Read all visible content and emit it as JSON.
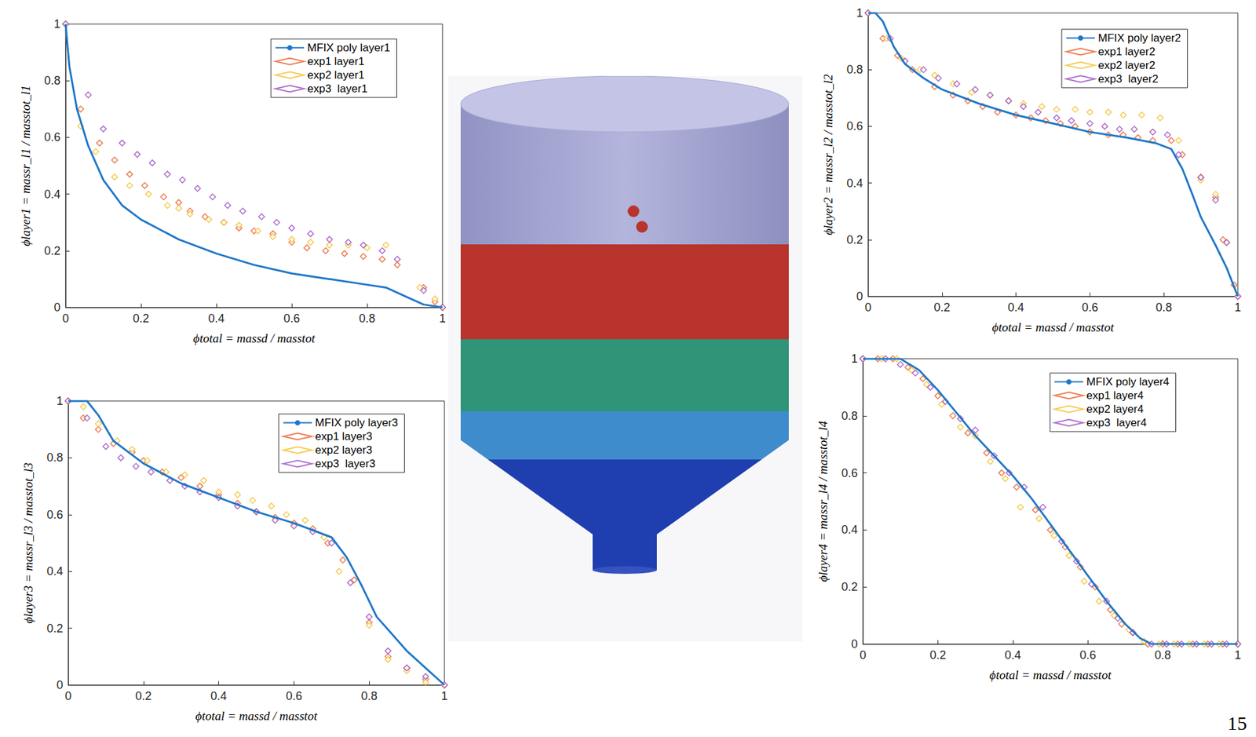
{
  "page_number": "15",
  "chart_data": [
    {
      "type": "line",
      "xlabel": "ϕtotal = massd / masstot",
      "ylabel": "ϕlayer1 = massr_l1 / masstot_l1",
      "xlim": [
        0,
        1
      ],
      "xticks": [
        0,
        0.2,
        0.4,
        0.6,
        0.8,
        1
      ],
      "ylim": [
        0,
        1
      ],
      "yticks": [
        0,
        0.2,
        0.4,
        0.6,
        0.8,
        1
      ],
      "grid": false,
      "legend": "upper right",
      "series": [
        {
          "name": "MFIX poly layer1",
          "type": "line",
          "marker": "none",
          "line_style": "solid",
          "color": "#1f77c8",
          "x": [
            0,
            0.01,
            0.03,
            0.06,
            0.1,
            0.15,
            0.2,
            0.3,
            0.4,
            0.5,
            0.6,
            0.7,
            0.8,
            0.85,
            0.9,
            0.95,
            1
          ],
          "values": [
            1,
            0.85,
            0.7,
            0.57,
            0.45,
            0.36,
            0.31,
            0.24,
            0.19,
            0.15,
            0.12,
            0.1,
            0.08,
            0.07,
            0.04,
            0.01,
            0
          ]
        },
        {
          "name": "exp1 layer1",
          "type": "scatter",
          "marker": "diamond",
          "color": "#e8602c",
          "x": [
            0,
            0.04,
            0.09,
            0.13,
            0.17,
            0.21,
            0.26,
            0.3,
            0.33,
            0.37,
            0.42,
            0.46,
            0.5,
            0.55,
            0.6,
            0.64,
            0.69,
            0.74,
            0.79,
            0.84,
            0.88,
            0.95,
            0.98,
            1
          ],
          "values": [
            1,
            0.7,
            0.58,
            0.52,
            0.47,
            0.43,
            0.39,
            0.37,
            0.34,
            0.32,
            0.3,
            0.28,
            0.27,
            0.26,
            0.23,
            0.21,
            0.2,
            0.19,
            0.18,
            0.17,
            0.15,
            0.07,
            0.02,
            0
          ]
        },
        {
          "name": "exp2 layer1",
          "type": "scatter",
          "marker": "diamond",
          "color": "#f2c12e",
          "x": [
            0,
            0.04,
            0.08,
            0.13,
            0.17,
            0.22,
            0.27,
            0.3,
            0.33,
            0.38,
            0.42,
            0.46,
            0.51,
            0.55,
            0.6,
            0.65,
            0.7,
            0.75,
            0.8,
            0.85,
            0.94,
            0.98,
            1
          ],
          "values": [
            1,
            0.64,
            0.55,
            0.46,
            0.43,
            0.4,
            0.36,
            0.35,
            0.33,
            0.31,
            0.3,
            0.29,
            0.27,
            0.25,
            0.24,
            0.23,
            0.22,
            0.22,
            0.21,
            0.22,
            0.07,
            0.03,
            0
          ]
        },
        {
          "name": "exp3  layer1",
          "type": "scatter",
          "marker": "diamond",
          "color": "#9e4fc1",
          "x": [
            0,
            0.06,
            0.1,
            0.15,
            0.19,
            0.23,
            0.27,
            0.31,
            0.35,
            0.39,
            0.43,
            0.47,
            0.52,
            0.56,
            0.6,
            0.65,
            0.7,
            0.75,
            0.79,
            0.84,
            0.88,
            0.95,
            1
          ],
          "values": [
            1,
            0.75,
            0.63,
            0.58,
            0.54,
            0.51,
            0.47,
            0.45,
            0.42,
            0.39,
            0.36,
            0.34,
            0.32,
            0.3,
            0.28,
            0.26,
            0.24,
            0.23,
            0.22,
            0.2,
            0.17,
            0.06,
            0
          ]
        }
      ]
    },
    {
      "type": "line",
      "xlabel": "ϕtotal = massd / masstot",
      "ylabel": "ϕlayer2 = massr_l2 / masstot_l2",
      "xlim": [
        0,
        1
      ],
      "xticks": [
        0,
        0.2,
        0.4,
        0.6,
        0.8,
        1
      ],
      "ylim": [
        0,
        1
      ],
      "yticks": [
        0,
        0.2,
        0.4,
        0.6,
        0.8,
        1
      ],
      "grid": false,
      "legend": "upper right",
      "series": [
        {
          "name": "MFIX poly layer2",
          "type": "line",
          "marker": "none",
          "line_style": "solid",
          "color": "#1f77c8",
          "x": [
            0,
            0.02,
            0.04,
            0.07,
            0.1,
            0.15,
            0.2,
            0.3,
            0.4,
            0.5,
            0.6,
            0.7,
            0.78,
            0.82,
            0.85,
            0.88,
            0.9,
            0.94,
            0.97,
            1
          ],
          "values": [
            1,
            1,
            0.97,
            0.88,
            0.82,
            0.77,
            0.73,
            0.68,
            0.64,
            0.61,
            0.58,
            0.56,
            0.54,
            0.52,
            0.45,
            0.35,
            0.28,
            0.18,
            0.1,
            0
          ]
        },
        {
          "name": "exp1 layer2",
          "type": "scatter",
          "marker": "diamond",
          "color": "#e8602c",
          "x": [
            0,
            0.04,
            0.08,
            0.12,
            0.18,
            0.23,
            0.27,
            0.31,
            0.35,
            0.4,
            0.44,
            0.48,
            0.52,
            0.56,
            0.6,
            0.65,
            0.69,
            0.73,
            0.77,
            0.82,
            0.85,
            0.9,
            0.94,
            0.96,
            0.99,
            1
          ],
          "values": [
            1,
            0.91,
            0.85,
            0.8,
            0.74,
            0.71,
            0.69,
            0.67,
            0.65,
            0.64,
            0.63,
            0.62,
            0.61,
            0.6,
            0.58,
            0.57,
            0.57,
            0.56,
            0.55,
            0.55,
            0.5,
            0.42,
            0.35,
            0.2,
            0.04,
            0
          ]
        },
        {
          "name": "exp2 layer2",
          "type": "scatter",
          "marker": "diamond",
          "color": "#f2c12e",
          "x": [
            0,
            0.05,
            0.09,
            0.14,
            0.18,
            0.23,
            0.28,
            0.33,
            0.38,
            0.42,
            0.47,
            0.51,
            0.56,
            0.6,
            0.65,
            0.69,
            0.74,
            0.79,
            0.84,
            0.9,
            0.94,
            0.97,
            1
          ],
          "values": [
            1,
            0.91,
            0.84,
            0.8,
            0.78,
            0.75,
            0.72,
            0.71,
            0.69,
            0.68,
            0.67,
            0.66,
            0.66,
            0.65,
            0.65,
            0.64,
            0.64,
            0.63,
            0.55,
            0.41,
            0.36,
            0.19,
            0
          ]
        },
        {
          "name": "exp3  layer2",
          "type": "scatter",
          "marker": "diamond",
          "color": "#9e4fc1",
          "x": [
            0,
            0.06,
            0.1,
            0.15,
            0.19,
            0.24,
            0.29,
            0.33,
            0.38,
            0.42,
            0.46,
            0.51,
            0.55,
            0.6,
            0.64,
            0.68,
            0.72,
            0.77,
            0.81,
            0.84,
            0.9,
            0.94,
            0.97,
            1
          ],
          "values": [
            1,
            0.91,
            0.83,
            0.8,
            0.77,
            0.75,
            0.73,
            0.71,
            0.69,
            0.67,
            0.65,
            0.63,
            0.62,
            0.61,
            0.6,
            0.59,
            0.59,
            0.58,
            0.57,
            0.5,
            0.42,
            0.34,
            0.19,
            0
          ]
        }
      ]
    },
    {
      "type": "line",
      "xlabel": "ϕtotal = massd / masstot",
      "ylabel": "ϕlayer3 = massr_l3 / masstot_l3",
      "xlim": [
        0,
        1
      ],
      "xticks": [
        0,
        0.2,
        0.4,
        0.6,
        0.8,
        1
      ],
      "ylim": [
        0,
        1
      ],
      "yticks": [
        0,
        0.2,
        0.4,
        0.6,
        0.8,
        1
      ],
      "grid": false,
      "legend": "upper right",
      "series": [
        {
          "name": "MFIX poly layer3",
          "type": "line",
          "marker": "none",
          "line_style": "solid",
          "color": "#1f77c8",
          "x": [
            0,
            0.05,
            0.08,
            0.12,
            0.2,
            0.3,
            0.4,
            0.5,
            0.6,
            0.66,
            0.7,
            0.74,
            0.78,
            0.82,
            0.86,
            0.9,
            0.95,
            1
          ],
          "values": [
            1,
            1,
            0.95,
            0.86,
            0.78,
            0.71,
            0.66,
            0.61,
            0.57,
            0.54,
            0.52,
            0.45,
            0.35,
            0.24,
            0.18,
            0.12,
            0.06,
            0
          ]
        },
        {
          "name": "exp1 layer3",
          "type": "scatter",
          "marker": "diamond",
          "color": "#e8602c",
          "x": [
            0,
            0.04,
            0.08,
            0.12,
            0.17,
            0.2,
            0.25,
            0.3,
            0.35,
            0.4,
            0.45,
            0.5,
            0.55,
            0.6,
            0.65,
            0.69,
            0.73,
            0.76,
            0.8,
            0.85,
            0.9,
            0.95,
            1
          ],
          "values": [
            1,
            0.94,
            0.9,
            0.85,
            0.82,
            0.79,
            0.75,
            0.73,
            0.7,
            0.67,
            0.64,
            0.61,
            0.59,
            0.57,
            0.55,
            0.5,
            0.44,
            0.37,
            0.22,
            0.1,
            0.06,
            0.02,
            0
          ]
        },
        {
          "name": "exp2 layer3",
          "type": "scatter",
          "marker": "diamond",
          "color": "#f2c12e",
          "x": [
            0,
            0.04,
            0.08,
            0.13,
            0.17,
            0.21,
            0.26,
            0.31,
            0.36,
            0.4,
            0.45,
            0.49,
            0.54,
            0.58,
            0.63,
            0.68,
            0.72,
            0.8,
            0.85,
            0.9,
            0.95,
            1
          ],
          "values": [
            1,
            0.98,
            0.92,
            0.86,
            0.83,
            0.79,
            0.75,
            0.74,
            0.72,
            0.68,
            0.67,
            0.65,
            0.63,
            0.6,
            0.58,
            0.52,
            0.4,
            0.21,
            0.09,
            0.05,
            0.01,
            0
          ]
        },
        {
          "name": "exp3  layer3",
          "type": "scatter",
          "marker": "diamond",
          "color": "#9e4fc1",
          "x": [
            0,
            0.05,
            0.1,
            0.14,
            0.18,
            0.22,
            0.27,
            0.31,
            0.35,
            0.4,
            0.45,
            0.5,
            0.55,
            0.6,
            0.65,
            0.7,
            0.75,
            0.8,
            0.85,
            0.9,
            0.95,
            1
          ],
          "values": [
            1,
            0.94,
            0.84,
            0.8,
            0.77,
            0.75,
            0.72,
            0.7,
            0.68,
            0.66,
            0.63,
            0.61,
            0.58,
            0.56,
            0.54,
            0.5,
            0.36,
            0.24,
            0.12,
            0.06,
            0.03,
            0
          ]
        }
      ]
    },
    {
      "type": "line",
      "xlabel": "ϕtotal = massd / masstot",
      "ylabel": "ϕlayer4 = massr_l4 / masstot_l4",
      "xlim": [
        0,
        1
      ],
      "xticks": [
        0,
        0.2,
        0.4,
        0.6,
        0.8,
        1
      ],
      "ylim": [
        0,
        1
      ],
      "yticks": [
        0,
        0.2,
        0.4,
        0.6,
        0.8,
        1
      ],
      "grid": false,
      "legend": "upper right",
      "series": [
        {
          "name": "MFIX poly layer4",
          "type": "line",
          "marker": "none",
          "line_style": "solid",
          "color": "#1f77c8",
          "x": [
            0,
            0.1,
            0.15,
            0.2,
            0.25,
            0.3,
            0.35,
            0.4,
            0.45,
            0.5,
            0.55,
            0.6,
            0.65,
            0.7,
            0.74,
            0.77,
            1
          ],
          "values": [
            1,
            1,
            0.96,
            0.89,
            0.81,
            0.73,
            0.66,
            0.59,
            0.51,
            0.42,
            0.33,
            0.24,
            0.15,
            0.07,
            0.02,
            0,
            0
          ]
        },
        {
          "name": "exp1 layer4",
          "type": "scatter",
          "marker": "diamond",
          "color": "#e8602c",
          "x": [
            0,
            0.04,
            0.08,
            0.12,
            0.16,
            0.2,
            0.24,
            0.28,
            0.33,
            0.37,
            0.41,
            0.46,
            0.5,
            0.54,
            0.58,
            0.62,
            0.66,
            0.69,
            0.72,
            0.76,
            0.8,
            0.84,
            0.88,
            0.92,
            0.96,
            1
          ],
          "values": [
            1,
            1,
            1,
            0.97,
            0.93,
            0.87,
            0.8,
            0.74,
            0.67,
            0.6,
            0.55,
            0.47,
            0.4,
            0.34,
            0.27,
            0.2,
            0.12,
            0.07,
            0.04,
            0,
            0,
            0,
            0,
            0,
            0,
            0
          ]
        },
        {
          "name": "exp2 layer4",
          "type": "scatter",
          "marker": "diamond",
          "color": "#f2c12e",
          "x": [
            0,
            0.05,
            0.09,
            0.13,
            0.17,
            0.21,
            0.26,
            0.3,
            0.34,
            0.38,
            0.42,
            0.47,
            0.51,
            0.55,
            0.59,
            0.63,
            0.67,
            0.71,
            0.75,
            0.79,
            0.83,
            0.87,
            0.91,
            0.95,
            1
          ],
          "values": [
            1,
            1,
            1,
            0.96,
            0.91,
            0.84,
            0.76,
            0.73,
            0.64,
            0.58,
            0.48,
            0.44,
            0.38,
            0.31,
            0.22,
            0.15,
            0.1,
            0.05,
            0.01,
            0,
            0,
            0,
            0,
            0,
            0
          ]
        },
        {
          "name": "exp3  layer4",
          "type": "scatter",
          "marker": "diamond",
          "color": "#9e4fc1",
          "x": [
            0,
            0.06,
            0.1,
            0.14,
            0.18,
            0.22,
            0.26,
            0.3,
            0.35,
            0.39,
            0.43,
            0.48,
            0.53,
            0.57,
            0.61,
            0.65,
            0.68,
            0.72,
            0.77,
            0.81,
            0.85,
            0.89,
            0.93,
            0.97,
            1
          ],
          "values": [
            1,
            1,
            0.98,
            0.95,
            0.9,
            0.85,
            0.79,
            0.75,
            0.66,
            0.6,
            0.55,
            0.48,
            0.36,
            0.29,
            0.21,
            0.15,
            0.09,
            0.04,
            0,
            0,
            0,
            0,
            0,
            0,
            0
          ]
        }
      ]
    }
  ]
}
